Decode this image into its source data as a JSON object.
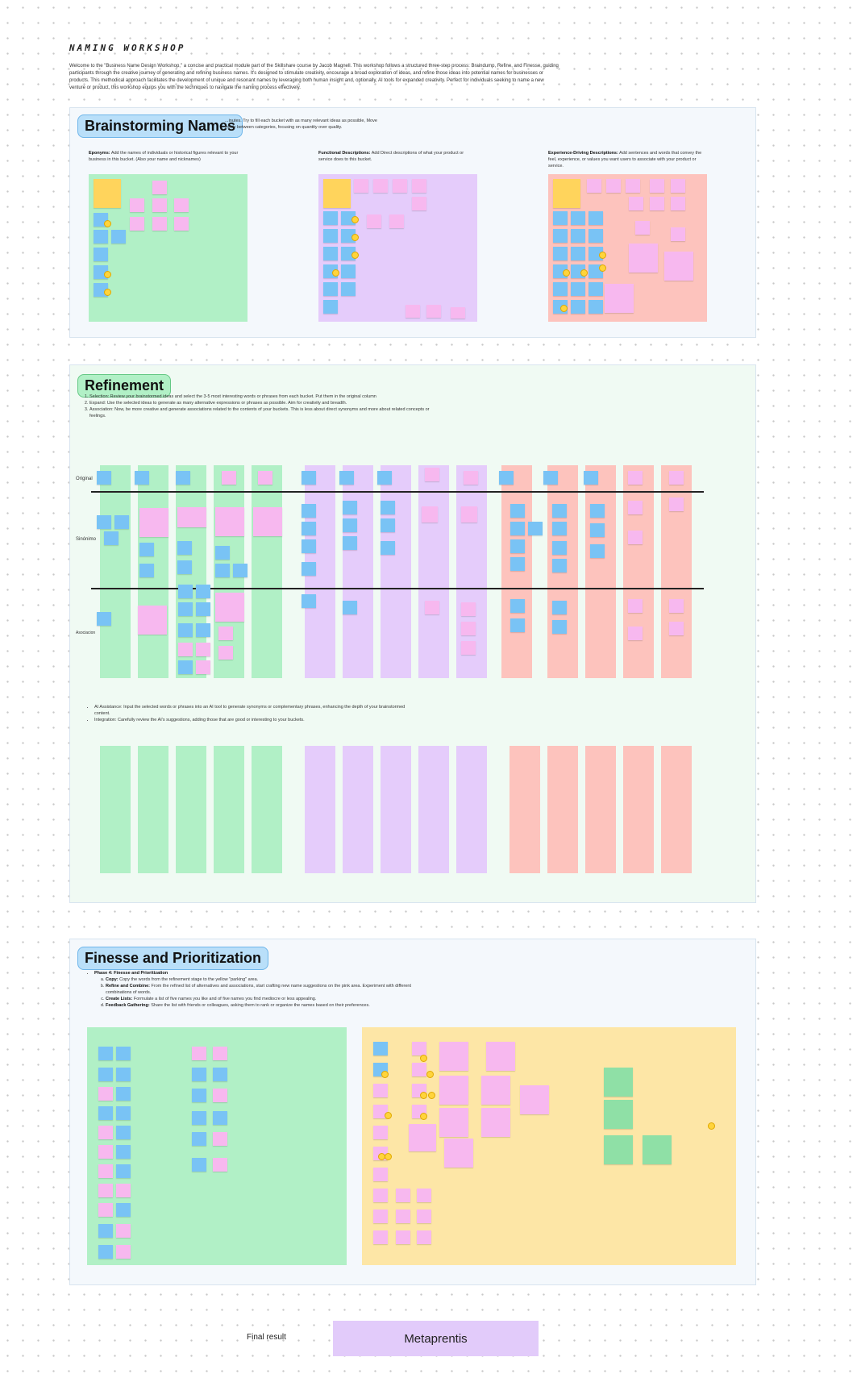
{
  "header": {
    "title": "NAMING WORKSHOP",
    "intro": "Welcome to the \"Business Name Design Workshop,\" a concise and practical module part of the Skillshare course by Jacob Magnell. This workshop follows a structured three-step process: Braindump, Refine, and Finesse, guiding participants through the creative journey of generating and refining business names. It's designed to stimulate creativity, encourage a broad exploration of ideas, and refine those ideas into potential names for businesses or products. This methodical approach facilitates the development of unique and resonant names by leveraging both human insight and, optionally, AI tools for expanded creativity. Perfect for individuals seeking to name a new venture or product, this workshop equips you with the techniques to navigate the naming process effectively."
  },
  "brainstorm": {
    "label": "Brainstorming Names",
    "instructions": "...inutes. Try to fill each bucket with as many relevant ideas as possible, Move freely between categories, focusing on quantity over quality.",
    "buckets": [
      {
        "title": "Eponyms:",
        "desc": "Add the names of individuals or historical figures relevant to your business in this bucket. (Also your name and nicknames)",
        "color": "#b1f0c6"
      },
      {
        "title": "Functional Descriptions:",
        "desc": "Add Direct descriptions of what your product or service does to this bucket.",
        "color": "#e5ccfb"
      },
      {
        "title": "Experience-Driving Descriptions:",
        "desc": "Add sentences and words that convey the feel, experience, or values you want users to associate with your product or service.",
        "color": "#fdc3bd"
      }
    ]
  },
  "refinement": {
    "label": "Refinement",
    "steps": [
      "Selection: Review your brainstormed ideas and select the 3-5 most interesting words or phrases from each bucket. Put them in the original column",
      "Expand: Use the selected ideas to generate as many alternative expressions or phrases as possible. Aim for creativity and breadth.",
      "Association: Now, be more creative and generate associations related to the contents of your buckets. This is less about direct synonyms and more about related concepts or feelings."
    ],
    "rows": [
      "Original",
      "Sinónimo",
      "Asociacion"
    ],
    "bullets": [
      "AI Assistance: Input the selected words or phrases into an AI tool to generate synonyms or complementary phrases, enhancing the depth of your brainstormed content.",
      "Integration: Carefully review the AI's suggestions, adding those that are good or interesting to your buckets."
    ]
  },
  "finesse": {
    "label": "Finesse and Prioritization",
    "phase": "Phase 4: Finesse and Prioritization",
    "steps": [
      {
        "key": "Copy:",
        "text": "Copy the words from the refinement stage to the yellow \"parking\" area."
      },
      {
        "key": "Refine and Combine:",
        "text": "From the refined list of alternatives and associations, start crafting new name suggestions on the pink area. Experiment with different combinations of words."
      },
      {
        "key": "Create Lists:",
        "text": "Formulate a list of five names you like and of five names you find mediocre or less appealing."
      },
      {
        "key": "Feedback Gathering:",
        "text": "Share the list with friends or colleagues, asking them to rank or organize the names based on their preferences."
      }
    ]
  },
  "final": {
    "label": "Final result",
    "value": "Metaprentis"
  },
  "colors": {
    "green": "#b1f0c6",
    "purple": "#e5ccfb",
    "salmon": "#fdc3bd",
    "yellow": "#fde6a6",
    "blue_note": "#79c3f5",
    "pink_note": "#f7b8ef"
  }
}
